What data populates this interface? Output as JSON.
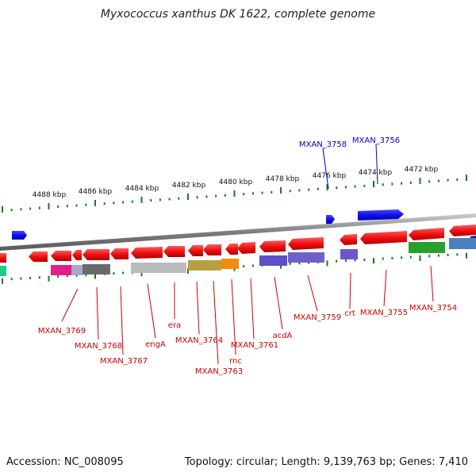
{
  "title": "Myxococcus xanthus DK 1622, complete genome",
  "footer": {
    "accession": "Accession: NC_008095",
    "topology": "Topology: circular; Length: 9,139,763 bp; Genes: 7,410"
  },
  "scale_labels": [
    "4488 kbp",
    "4486 kbp",
    "4484 kbp",
    "4482 kbp",
    "4480 kbp",
    "4478 kbp",
    "4476 kbp",
    "4474 kbp",
    "4472 kbp"
  ],
  "gene_labels_top": [
    "MXAN_3758",
    "MXAN_3756"
  ],
  "gene_labels_bottom": [
    "MXAN_3769",
    "MXAN_3768",
    "MXAN_3767",
    "engA",
    "era",
    "MXAN_3764",
    "MXAN_3763",
    "rnc",
    "MXAN_3761",
    "acdA",
    "MXAN_3759",
    "crt",
    "MXAN_3755",
    "MXAN_3754"
  ],
  "colors": {
    "forward_gene": "#1010ee",
    "reverse_gene": "#ee1111",
    "top_label": "#0000cc",
    "bottom_label": "#cc0000",
    "tick": "#1a7a1a",
    "backbone": "#888888"
  }
}
